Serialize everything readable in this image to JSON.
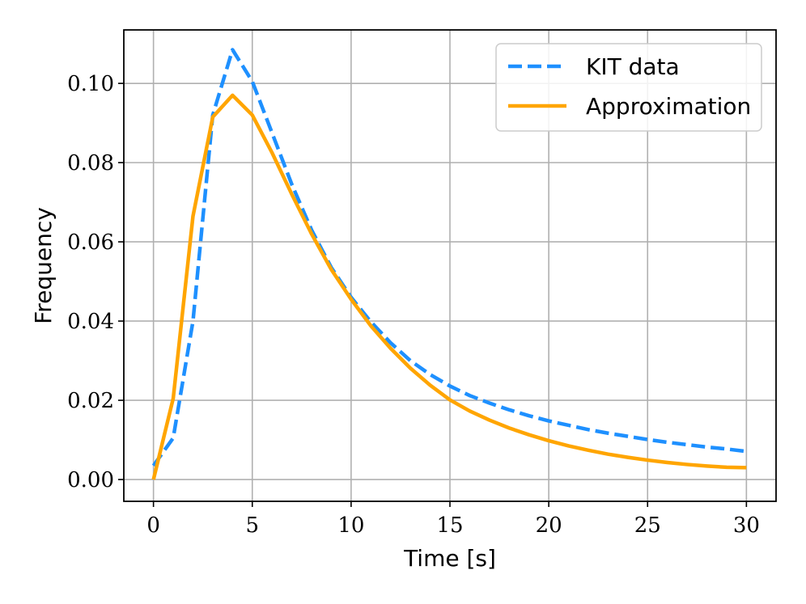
{
  "chart_data": {
    "type": "line",
    "title": "",
    "xlabel": "Time [s]",
    "ylabel": "Frequency",
    "xlim": [
      -1.5,
      31.5
    ],
    "ylim": [
      -0.0055,
      0.1135
    ],
    "xticks": [
      0,
      5,
      10,
      15,
      20,
      25,
      30
    ],
    "xtick_labels": [
      "0",
      "5",
      "10",
      "15",
      "20",
      "25",
      "30"
    ],
    "yticks": [
      0.0,
      0.02,
      0.04,
      0.06,
      0.08,
      0.1
    ],
    "ytick_labels": [
      "0.00",
      "0.02",
      "0.04",
      "0.06",
      "0.08",
      "0.10"
    ],
    "grid": true,
    "legend_position": "upper right",
    "series": [
      {
        "name": "KIT data",
        "color": "#1e90ff",
        "style": "dashed",
        "x": [
          0,
          1,
          2,
          3,
          4,
          5,
          6,
          7,
          8,
          9,
          10,
          11,
          12,
          13,
          14,
          15,
          16,
          17,
          18,
          19,
          20,
          21,
          22,
          23,
          24,
          25,
          26,
          27,
          28,
          29,
          30
        ],
        "y": [
          0.0035,
          0.0105,
          0.04,
          0.092,
          0.1085,
          0.1005,
          0.0875,
          0.0745,
          0.063,
          0.0535,
          0.046,
          0.0398,
          0.0345,
          0.03,
          0.0265,
          0.0236,
          0.0212,
          0.0193,
          0.0176,
          0.0161,
          0.0148,
          0.0137,
          0.0126,
          0.0117,
          0.0109,
          0.0101,
          0.0094,
          0.0088,
          0.0082,
          0.0077,
          0.0071
        ]
      },
      {
        "name": "Approximation",
        "color": "#ffa500",
        "style": "solid",
        "x": [
          0,
          1,
          2,
          3,
          4,
          5,
          6,
          7,
          8,
          9,
          10,
          11,
          12,
          13,
          14,
          15,
          16,
          17,
          18,
          19,
          20,
          21,
          22,
          23,
          24,
          25,
          26,
          27,
          28,
          29,
          30
        ],
        "y": [
          0.0,
          0.0205,
          0.0665,
          0.0915,
          0.097,
          0.092,
          0.0825,
          0.072,
          0.062,
          0.053,
          0.0455,
          0.0388,
          0.0331,
          0.0281,
          0.0238,
          0.0201,
          0.0173,
          0.015,
          0.013,
          0.0113,
          0.0098,
          0.0085,
          0.0074,
          0.0064,
          0.0056,
          0.0049,
          0.0043,
          0.0038,
          0.0034,
          0.0031,
          0.003
        ]
      }
    ]
  }
}
